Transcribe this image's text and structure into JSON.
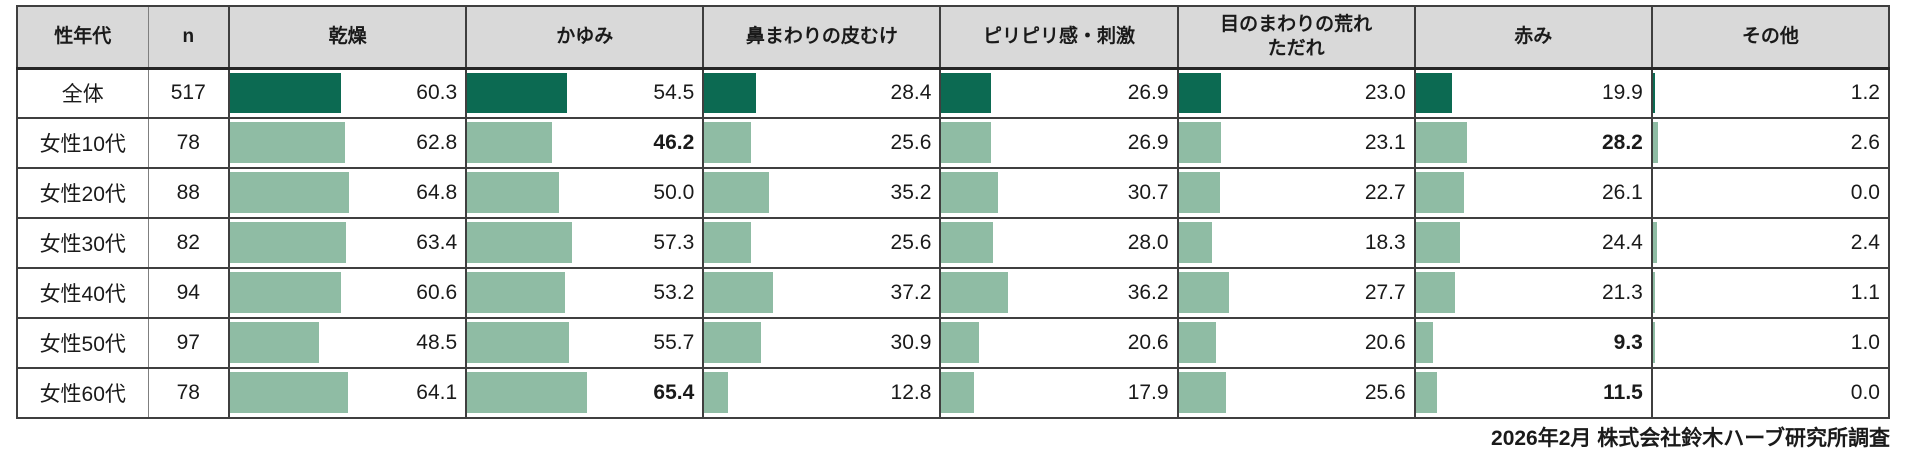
{
  "chart_data": {
    "type": "table",
    "title": "",
    "columns": [
      "性年代",
      "n",
      "乾燥",
      "かゆみ",
      "鼻まわりの皮むけ",
      "ピリピリ感・刺激",
      "目のまわりの荒れ\nただれ",
      "赤み",
      "その他"
    ],
    "bar_scale_note": "cells contain data bars, bar length proportional to percent value",
    "rows": [
      {
        "label": "全体",
        "n": "517",
        "values": [
          "60.3",
          "54.5",
          "28.4",
          "26.9",
          "23.0",
          "19.9",
          "1.2"
        ],
        "bold": [],
        "bar_color_key": "total"
      },
      {
        "label": "女性10代",
        "n": "78",
        "values": [
          "62.8",
          "46.2",
          "25.6",
          "26.9",
          "23.1",
          "28.2",
          "2.6"
        ],
        "bold": [
          1,
          5
        ],
        "bar_color_key": "segment"
      },
      {
        "label": "女性20代",
        "n": "88",
        "values": [
          "64.8",
          "50.0",
          "35.2",
          "30.7",
          "22.7",
          "26.1",
          "0.0"
        ],
        "bold": [],
        "bar_color_key": "segment"
      },
      {
        "label": "女性30代",
        "n": "82",
        "values": [
          "63.4",
          "57.3",
          "25.6",
          "28.0",
          "18.3",
          "24.4",
          "2.4"
        ],
        "bold": [],
        "bar_color_key": "segment"
      },
      {
        "label": "女性40代",
        "n": "94",
        "values": [
          "60.6",
          "53.2",
          "37.2",
          "36.2",
          "27.7",
          "21.3",
          "1.1"
        ],
        "bold": [],
        "bar_color_key": "segment"
      },
      {
        "label": "女性50代",
        "n": "97",
        "values": [
          "48.5",
          "55.7",
          "30.9",
          "20.6",
          "20.6",
          "9.3",
          "1.0"
        ],
        "bold": [
          5
        ],
        "bar_color_key": "segment"
      },
      {
        "label": "女性60代",
        "n": "78",
        "values": [
          "64.1",
          "65.4",
          "12.8",
          "17.9",
          "25.6",
          "11.5",
          "0.0"
        ],
        "bold": [
          1,
          5
        ],
        "bar_color_key": "segment"
      }
    ]
  },
  "colors": {
    "bar_total": "#0c6a52",
    "bar_segment": "#8fbca4",
    "header_bg": "#d9d9d9"
  },
  "footer": {
    "source_label": "2026年2月 株式会社鈴木ハーブ研究所調査"
  }
}
